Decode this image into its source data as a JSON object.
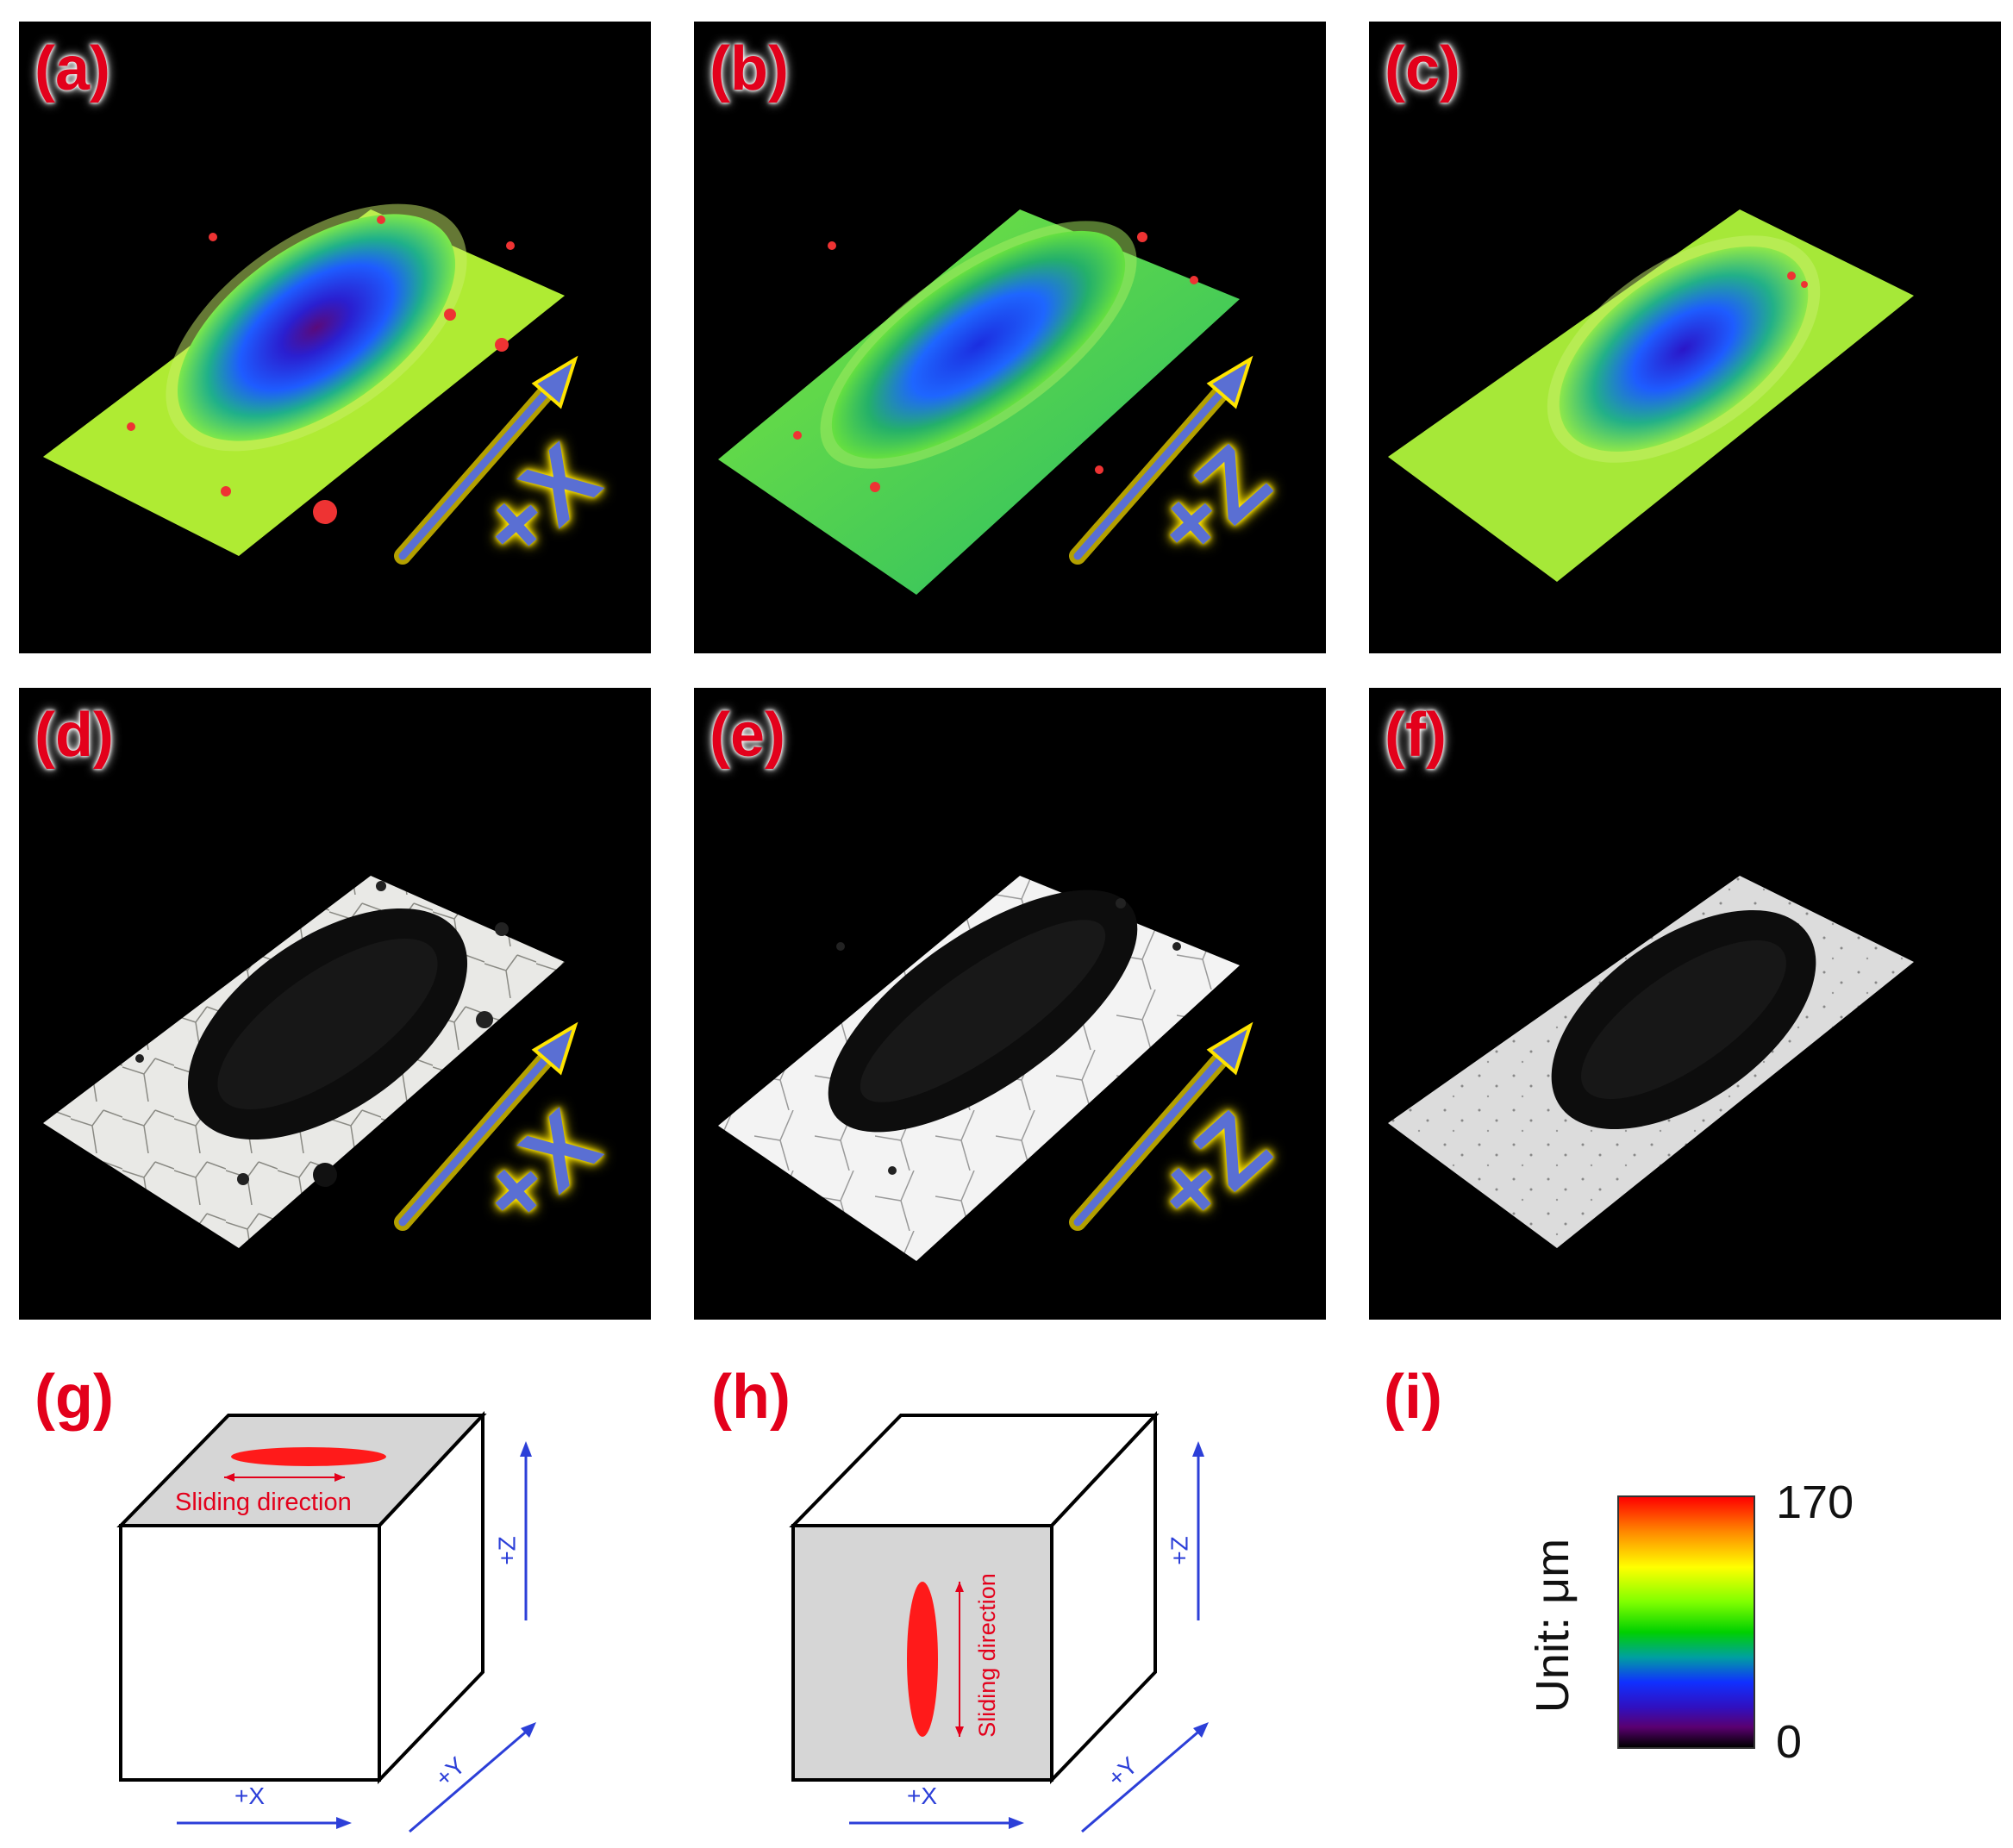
{
  "panels": [
    {
      "label": "(a)",
      "type": "height-map",
      "axis": "+X",
      "shows_axis_arrow": true
    },
    {
      "label": "(b)",
      "type": "height-map",
      "axis": "+Z",
      "shows_axis_arrow": true
    },
    {
      "label": "(c)",
      "type": "height-map",
      "axis": "",
      "shows_axis_arrow": false
    },
    {
      "label": "(d)",
      "type": "optical",
      "axis": "+X",
      "shows_axis_arrow": true
    },
    {
      "label": "(e)",
      "type": "optical",
      "axis": "+Z",
      "shows_axis_arrow": true
    },
    {
      "label": "(f)",
      "type": "optical",
      "axis": "",
      "shows_axis_arrow": false
    }
  ],
  "diagrams": {
    "g": {
      "label": "(g)",
      "sliding": "Sliding direction",
      "z": "+Z",
      "y": "+Y",
      "x": "+X"
    },
    "h": {
      "label": "(h)",
      "sliding": "Sliding direction",
      "z": "+Z",
      "y": "+Y",
      "x": "+X"
    }
  },
  "colorbar": {
    "label": "(i)",
    "title": "Unit: μm",
    "max": "170",
    "min": "0",
    "max_value": 170,
    "min_value": 0
  },
  "colors": {
    "label_red": "#e3001b",
    "axis_blue": "#2c3fd8",
    "arrow_blue": "#5a6fd3",
    "arrow_glow": "#ffe400",
    "face_gray": "#d6d6d6"
  }
}
